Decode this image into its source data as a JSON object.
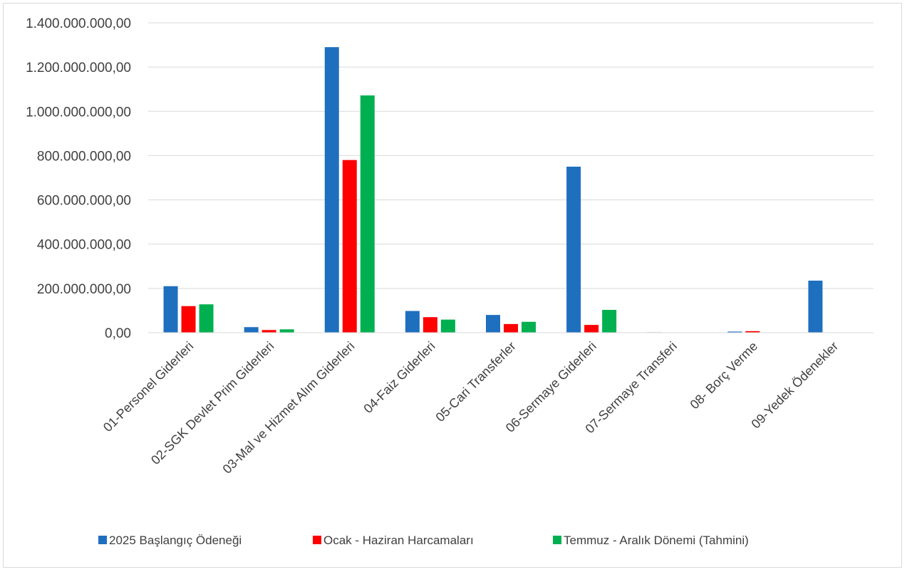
{
  "chart_data": {
    "type": "bar",
    "categories": [
      "01-Personel Giderleri",
      "02-SGK Devlet Prim Giderleri",
      "03-Mal ve Hizmet Alım Giderleri",
      "04-Faiz Giderleri",
      "05-Cari Transferler",
      "06-Sermaye Giderleri",
      "07-Sermaye Transferi",
      "08- Borç Verme",
      "09-Yedek Ödenekler"
    ],
    "series": [
      {
        "name": "2025 Başlangıç Ödeneği",
        "color": "#1f6fbf",
        "values": [
          210000000,
          25000000,
          1290000000,
          98000000,
          80000000,
          750000000,
          2000000,
          5000000,
          235000000
        ]
      },
      {
        "name": "Ocak - Haziran Harcamaları",
        "color": "#ff0000",
        "values": [
          120000000,
          12000000,
          780000000,
          70000000,
          39000000,
          35000000,
          0,
          7000000,
          0
        ]
      },
      {
        "name": "Temmuz - Aralık Dönemi (Tahmini)",
        "color": "#00b050",
        "values": [
          128000000,
          15000000,
          1072000000,
          59000000,
          49000000,
          103000000,
          0,
          0,
          0
        ]
      }
    ],
    "yticks": [
      "0,00",
      "200.000.000,00",
      "400.000.000,00",
      "600.000.000,00",
      "800.000.000,00",
      "1.000.000.000,00",
      "1.200.000.000,00",
      "1.400.000.000,00"
    ],
    "ylim": [
      0,
      1400000000
    ],
    "grid": true,
    "legend_position": "bottom",
    "title": "",
    "xlabel": "",
    "ylabel": ""
  }
}
